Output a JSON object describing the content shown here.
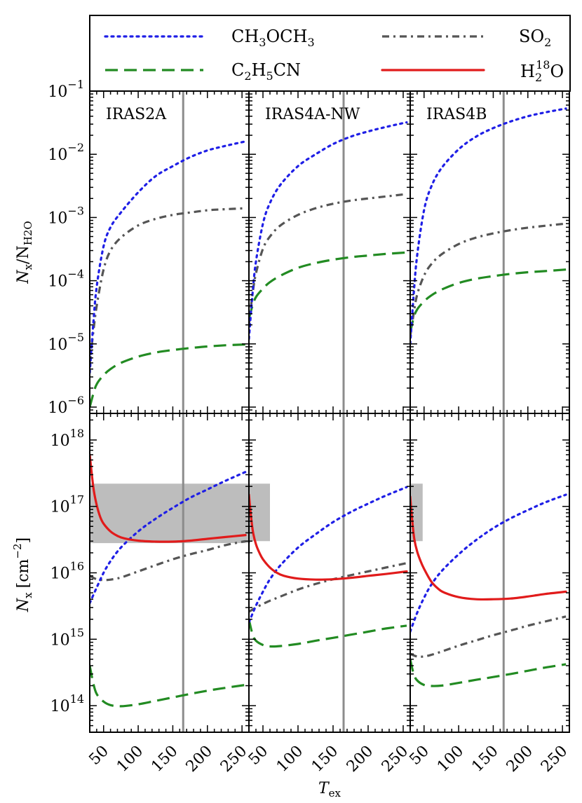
{
  "chart_data": {
    "type": "line",
    "xlabel": "T_ex",
    "xlabel_main": "T",
    "xlabel_sub": "ex",
    "xlim": [
      30,
      260
    ],
    "x_ticks": [
      50,
      100,
      150,
      200,
      250
    ],
    "x_tick_labels": [
      "50",
      "100",
      "150",
      "200",
      "250"
    ],
    "vertical_line_x": 165,
    "grid": false,
    "legend": {
      "placement": "top",
      "entries": [
        {
          "key": "ch3och3",
          "label_parts": [
            "CH",
            "3",
            "OCH",
            "3"
          ],
          "style": "dotted",
          "color": "#1f1fe6"
        },
        {
          "key": "so2",
          "label_parts": [
            "SO",
            "2"
          ],
          "style": "dashdot",
          "color": "#555555"
        },
        {
          "key": "c2h5cn",
          "label_parts": [
            "C",
            "2",
            "H",
            "5",
            "CN"
          ],
          "style": "dashed",
          "color": "#228b22"
        },
        {
          "key": "h218o",
          "label_parts": [
            "H",
            "2",
            "18",
            "O"
          ],
          "style": "solid",
          "color": "#e11b1b"
        }
      ]
    },
    "top_row": {
      "ylabel_parts": [
        "N",
        "x",
        "/N",
        "H2O"
      ],
      "ylim_log10": [
        -6.1,
        -1
      ],
      "y_ticks": [
        -6,
        -5,
        -4,
        -3,
        -2,
        -1
      ],
      "y_tick_labels": [
        "10-6",
        "10-5",
        "10-4",
        "10-3",
        "10-2",
        "10-1"
      ]
    },
    "bottom_row": {
      "ylabel_parts": [
        "N",
        "x",
        "[cm",
        "-2",
        "]"
      ],
      "ylim_log10": [
        13.6,
        18.4
      ],
      "y_ticks": [
        14,
        15,
        16,
        17,
        18
      ],
      "y_tick_labels": [
        "1014",
        "1015",
        "1016",
        "1017",
        "1018"
      ]
    },
    "panels": [
      {
        "name": "IRAS2A",
        "ratio": {
          "ch3och3": {
            "x": [
              30,
              35,
              40,
              50,
              60,
              75,
              100,
              125,
              150,
              175,
              200,
              225,
              255
            ],
            "y": [
              3.5e-06,
              2e-05,
              8e-05,
              0.00035,
              0.0007,
              0.0012,
              0.0025,
              0.0045,
              0.0065,
              0.009,
              0.0115,
              0.0135,
              0.016
            ]
          },
          "so2": {
            "x": [
              30,
              35,
              40,
              50,
              60,
              75,
              100,
              125,
              150,
              175,
              200,
              225,
              255
            ],
            "y": [
              5e-06,
              1.5e-05,
              4e-05,
              0.00015,
              0.0003,
              0.00048,
              0.00075,
              0.00095,
              0.0011,
              0.0012,
              0.0013,
              0.00135,
              0.0014
            ]
          },
          "c2h5cn": {
            "x": [
              30,
              35,
              40,
              50,
              60,
              75,
              100,
              125,
              150,
              175,
              200,
              225,
              255
            ],
            "y": [
              1e-06,
              1.6e-06,
              2.3e-06,
              3.2e-06,
              4e-06,
              5e-06,
              6.3e-06,
              7.3e-06,
              8e-06,
              8.6e-06,
              9.1e-06,
              9.5e-06,
              9.8e-06
            ]
          }
        },
        "column": {
          "h218o": {
            "x": [
              30,
              33,
              36,
              40,
              45,
              50,
              60,
              70,
              80,
              100,
              125,
              150,
              175,
              200,
              225,
              255
            ],
            "y": [
              6e+17,
              3e+17,
              1.7e+17,
              1.05e+17,
              7e+16,
              5.5e+16,
              4.2e+16,
              3.6e+16,
              3.3e+16,
              3.05e+16,
              2.95e+16,
              2.95e+16,
              3.05e+16,
              3.25e+16,
              3.45e+16,
              3.7e+16
            ]
          },
          "ch3och3": {
            "x": [
              30,
              40,
              50,
              60,
              75,
              100,
              125,
              150,
              175,
              200,
              225,
              255
            ],
            "y": [
              3500000000000000.0,
              6000000000000000.0,
              1e+16,
              1.5e+16,
              2.4e+16,
              4.2e+16,
              6.5e+16,
              9.5e+16,
              1.35e+17,
              1.8e+17,
              2.4e+17,
              3.3e+17
            ]
          },
          "so2": {
            "x": [
              30,
              40,
              50,
              60,
              75,
              100,
              125,
              150,
              175,
              200,
              225,
              255
            ],
            "y": [
              9000000000000000.0,
              8000000000000000.0,
              7800000000000000.0,
              7900000000000000.0,
              8500000000000000.0,
              1.05e+16,
              1.3e+16,
              1.6e+16,
              1.9e+16,
              2.2e+16,
              2.6e+16,
              3e+16
            ]
          },
          "c2h5cn": {
            "x": [
              30,
              35,
              40,
              50,
              60,
              75,
              100,
              125,
              150,
              175,
              200,
              225,
              255
            ],
            "y": [
              400000000000000.0,
              220000000000000.0,
              150000000000000.0,
              115000000000000.0,
              102000000000000.0,
              98000000000000.0,
              105000000000000.0,
              118000000000000.0,
              133000000000000.0,
              150000000000000.0,
              168000000000000.0,
              185000000000000.0,
              205000000000000.0
            ]
          },
          "band": {
            "x0": 30,
            "x1": 262,
            "y0": 2.8e+16,
            "y1": 2.2e+17
          }
        }
      },
      {
        "name": "IRAS4A-NW",
        "ratio": {
          "ch3och3": {
            "x": [
              30,
              35,
              40,
              50,
              60,
              75,
              100,
              125,
              150,
              175,
              200,
              225,
              255
            ],
            "y": [
              1.2e-05,
              6e-05,
              0.0002,
              0.0008,
              0.0017,
              0.0033,
              0.0065,
              0.01,
              0.0145,
              0.019,
              0.023,
              0.027,
              0.032
            ]
          },
          "so2": {
            "x": [
              30,
              35,
              40,
              50,
              60,
              75,
              100,
              125,
              150,
              175,
              200,
              225,
              255
            ],
            "y": [
              2e-05,
              6e-05,
              0.00013,
              0.00032,
              0.0005,
              0.00075,
              0.0011,
              0.0014,
              0.00165,
              0.00185,
              0.002,
              0.00215,
              0.00235
            ]
          },
          "c2h5cn": {
            "x": [
              30,
              35,
              40,
              50,
              60,
              75,
              100,
              125,
              150,
              175,
              200,
              225,
              255
            ],
            "y": [
              2.5e-05,
              4e-05,
              5.5e-05,
              7.5e-05,
              9.5e-05,
              0.00012,
              0.00016,
              0.00019,
              0.000215,
              0.000235,
              0.00025,
              0.000265,
              0.00028
            ]
          }
        },
        "column": {
          "h218o": {
            "x": [
              30,
              33,
              36,
              40,
              45,
              50,
              60,
              70,
              80,
              100,
              125,
              150,
              175,
              200,
              225,
              255
            ],
            "y": [
              1.5e+17,
              7e+16,
              4e+16,
              2.7e+16,
              2e+16,
              1.6e+16,
              1.2e+16,
              1e+16,
              9000000000000000.0,
              8200000000000000.0,
              7900000000000000.0,
              8000000000000000.0,
              8400000000000000.0,
              9000000000000000.0,
              9600000000000000.0,
              1.05e+16
            ]
          },
          "ch3och3": {
            "x": [
              30,
              40,
              50,
              60,
              75,
              100,
              125,
              150,
              175,
              200,
              225,
              255
            ],
            "y": [
              1800000000000000.0,
              3200000000000000.0,
              5200000000000000.0,
              8000000000000000.0,
              1.3e+16,
              2.4e+16,
              3.8e+16,
              5.8e+16,
              8.2e+16,
              1.1e+17,
              1.45e+17,
              1.95e+17
            ]
          },
          "so2": {
            "x": [
              30,
              40,
              50,
              60,
              75,
              100,
              125,
              150,
              175,
              200,
              225,
              255
            ],
            "y": [
              2600000000000000.0,
              3000000000000000.0,
              3400000000000000.0,
              3800000000000000.0,
              4400000000000000.0,
              5600000000000000.0,
              6800000000000000.0,
              8000000000000000.0,
              9200000000000000.0,
              1.05e+16,
              1.2e+16,
              1.4e+16
            ]
          },
          "c2h5cn": {
            "x": [
              30,
              35,
              40,
              50,
              60,
              75,
              100,
              125,
              150,
              175,
              200,
              225,
              255
            ],
            "y": [
              2000000000000000.0,
              1200000000000000.0,
              950000000000000.0,
              820000000000000.0,
              780000000000000.0,
              790000000000000.0,
              850000000000000.0,
              950000000000000.0,
              1050000000000000.0,
              1170000000000000.0,
              1300000000000000.0,
              1450000000000000.0,
              1600000000000000.0
            ]
          },
          "band": {
            "x0": 30,
            "x1": 60,
            "y0": 3e+16,
            "y1": 2.2e+17
          }
        }
      },
      {
        "name": "IRAS4B",
        "ratio": {
          "ch3och3": {
            "x": [
              30,
              35,
              40,
              50,
              60,
              75,
              100,
              125,
              150,
              175,
              200,
              225,
              255
            ],
            "y": [
              1e-05,
              6e-05,
              0.00025,
              0.0013,
              0.003,
              0.006,
              0.012,
              0.019,
              0.026,
              0.033,
              0.04,
              0.046,
              0.053
            ]
          },
          "so2": {
            "x": [
              30,
              35,
              40,
              50,
              60,
              75,
              100,
              125,
              150,
              175,
              200,
              225,
              255
            ],
            "y": [
              1.3e-05,
              3e-05,
              6e-05,
              0.00012,
              0.00018,
              0.00026,
              0.00038,
              0.00048,
              0.00056,
              0.00063,
              0.00069,
              0.00074,
              0.0008
            ]
          },
          "c2h5cn": {
            "x": [
              30,
              35,
              40,
              50,
              60,
              75,
              100,
              125,
              150,
              175,
              200,
              225,
              255
            ],
            "y": [
              1.5e-05,
              2.6e-05,
              3.5e-05,
              4.7e-05,
              5.8e-05,
              7.2e-05,
              9.2e-05,
              0.000107,
              0.000118,
              0.000128,
              0.000136,
              0.000142,
              0.00015
            ]
          }
        },
        "column": {
          "h218o": {
            "x": [
              30,
              33,
              36,
              40,
              45,
              50,
              60,
              70,
              80,
              100,
              125,
              150,
              175,
              200,
              225,
              255
            ],
            "y": [
              1.4e+17,
              6e+16,
              3.2e+16,
              2.1e+16,
              1.5e+16,
              1.15e+16,
              7500000000000000.0,
              5800000000000000.0,
              5000000000000000.0,
              4300000000000000.0,
              4000000000000000.0,
              4000000000000000.0,
              4100000000000000.0,
              4400000000000000.0,
              4800000000000000.0,
              5200000000000000.0
            ]
          },
          "ch3och3": {
            "x": [
              30,
              40,
              50,
              60,
              75,
              100,
              125,
              150,
              175,
              200,
              225,
              255
            ],
            "y": [
              1300000000000000.0,
              2500000000000000.0,
              4200000000000000.0,
              6500000000000000.0,
              1.05e+16,
              1.9e+16,
              3.1e+16,
              4.7e+16,
              6.6e+16,
              8.8e+16,
              1.15e+17,
              1.5e+17
            ]
          },
          "so2": {
            "x": [
              30,
              40,
              50,
              60,
              75,
              100,
              125,
              150,
              175,
              200,
              225,
              255
            ],
            "y": [
              600000000000000.0,
              550000000000000.0,
              550000000000000.0,
              580000000000000.0,
              650000000000000.0,
              800000000000000.0,
              960000000000000.0,
              1150000000000000.0,
              1350000000000000.0,
              1600000000000000.0,
              1850000000000000.0,
              2200000000000000.0
            ]
          },
          "c2h5cn": {
            "x": [
              30,
              35,
              40,
              50,
              60,
              75,
              100,
              125,
              150,
              175,
              200,
              225,
              255
            ],
            "y": [
              500000000000000.0,
              300000000000000.0,
              240000000000000.0,
              205000000000000.0,
              198000000000000.0,
              200000000000000.0,
              220000000000000.0,
              245000000000000.0,
              270000000000000.0,
              300000000000000.0,
              335000000000000.0,
              375000000000000.0,
              420000000000000.0
            ]
          },
          "band": {
            "x0": 30,
            "x1": 48,
            "y0": 3e+16,
            "y1": 2.2e+17
          }
        }
      }
    ]
  }
}
